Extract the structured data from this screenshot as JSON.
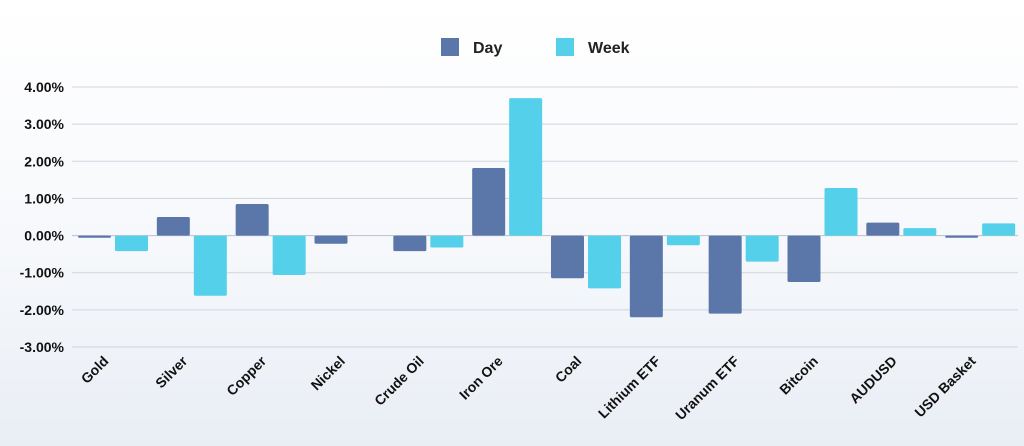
{
  "chart_data": {
    "type": "bar",
    "title": "",
    "xlabel": "",
    "ylabel": "",
    "categories": [
      "Gold",
      "Silver",
      "Copper",
      "Nickel",
      "Crude Oil",
      "Iron Ore",
      "Coal",
      "Lithium ETF",
      "Uranum ETF",
      "Bitcoin",
      "AUDUSD",
      "USD Basket"
    ],
    "series": [
      {
        "name": "Day",
        "color": "#5b77aa",
        "values": [
          -0.06,
          0.5,
          0.85,
          -0.22,
          -0.42,
          1.82,
          -1.15,
          -2.2,
          -2.1,
          -1.25,
          0.35,
          -0.06
        ]
      },
      {
        "name": "Week",
        "color": "#55d0ea",
        "values": [
          -0.42,
          -1.62,
          -1.06,
          0.0,
          -0.32,
          3.7,
          -1.42,
          -0.26,
          -0.7,
          1.28,
          0.2,
          0.33
        ]
      }
    ],
    "ylim": [
      -3.0,
      4.0
    ],
    "yticks": [
      4,
      3,
      2,
      1,
      0,
      -1,
      -2,
      -3
    ],
    "ytick_labels": [
      "4.00%",
      "3.00%",
      "2.00%",
      "1.00%",
      "0.00%",
      "-1.00%",
      "-2.00%",
      "-3.00%"
    ],
    "grid": true,
    "legend_position": "top-center"
  }
}
